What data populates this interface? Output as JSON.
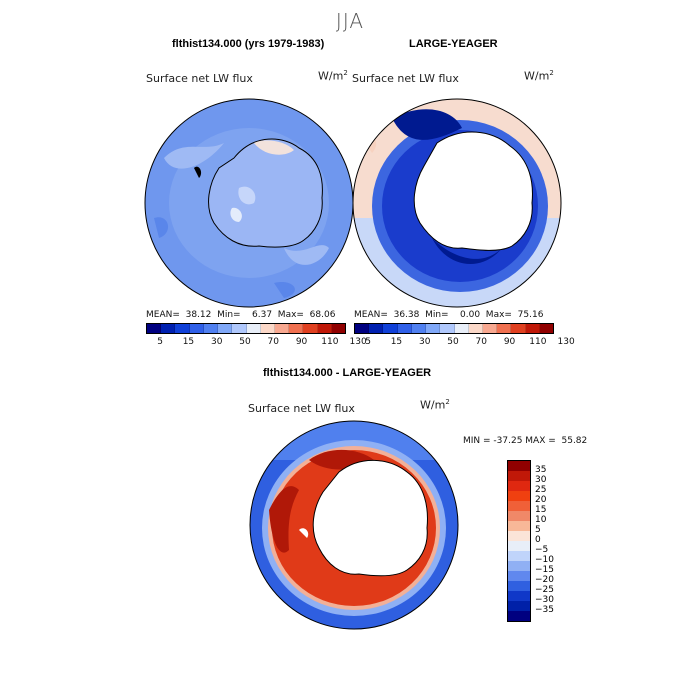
{
  "title": "JJA",
  "panels": {
    "left": {
      "title": "flthist134.000 (yrs 1979-1983)",
      "variable": "Surface net LW flux",
      "units": "W/m",
      "units_sup": "2",
      "stats_text": "MEAN=  38.12  Min=    6.37  Max=  68.06"
    },
    "right": {
      "title": "LARGE-YEAGER",
      "variable": "Surface net LW flux",
      "units": "W/m",
      "units_sup": "2",
      "stats_text": "MEAN=  36.38  Min=    0.00  Max=  75.16"
    },
    "diff": {
      "title": "flthist134.000 - LARGE-YEAGER",
      "variable": "Surface net LW flux",
      "units": "W/m",
      "units_sup": "2",
      "stats_text": "MIN = -37.25 MAX =  55.82"
    }
  },
  "colorbar_abs": {
    "labels": [
      "5",
      "15",
      "30",
      "50",
      "70",
      "90",
      "110",
      "130"
    ],
    "colors": [
      "#000080",
      "#0020b0",
      "#1040d8",
      "#3060e8",
      "#5080f0",
      "#80a8f8",
      "#b0c8fc",
      "#e8eef8",
      "#fbd8c8",
      "#f8a890",
      "#f07050",
      "#e04020",
      "#c01808",
      "#900000"
    ]
  },
  "colorbar_diff": {
    "labels": [
      "35",
      "30",
      "25",
      "20",
      "15",
      "10",
      "5",
      "0",
      "−5",
      "−10",
      "−15",
      "−20",
      "−25",
      "−30",
      "−35"
    ],
    "colors": [
      "#900000",
      "#c01808",
      "#e02810",
      "#f04010",
      "#f06038",
      "#f08868",
      "#f8b898",
      "#fbe4d8",
      "#e8eef8",
      "#c0d4fa",
      "#90b0f4",
      "#6088ee",
      "#3060e0",
      "#1038c8",
      "#0020a8",
      "#000080"
    ]
  }
}
